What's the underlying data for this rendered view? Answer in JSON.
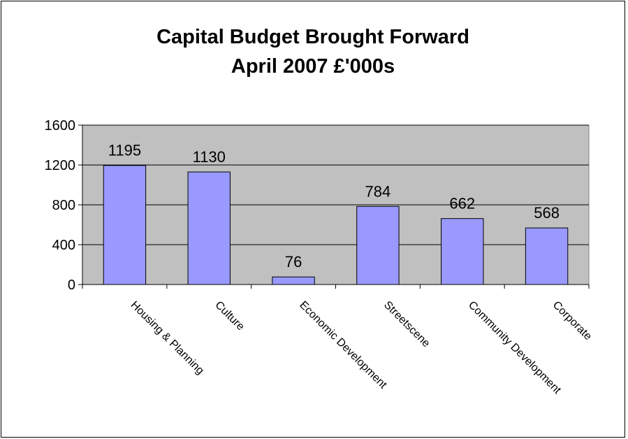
{
  "chart_data": {
    "type": "bar",
    "title_lines": [
      "Capital Budget Brought Forward",
      "April 2007 £'000s"
    ],
    "categories": [
      "Housing & Planning",
      "Culture",
      "Economic Development",
      "Streetscene",
      "Community Development",
      "Corporate"
    ],
    "values": [
      1195,
      1130,
      76,
      784,
      662,
      568
    ],
    "data_labels": [
      "1195",
      "1130",
      "76",
      "784",
      "662",
      "568"
    ],
    "y_ticks": [
      0,
      400,
      800,
      1200,
      1600
    ],
    "y_tick_labels": [
      "0",
      "400",
      "800",
      "1200",
      "1600"
    ],
    "ylim": [
      0,
      1600
    ],
    "grid": true,
    "legend": "none",
    "colors": {
      "bar_fill": "#9999FF",
      "plot_background": "#C0C0C0",
      "gridline": "#000000"
    }
  }
}
